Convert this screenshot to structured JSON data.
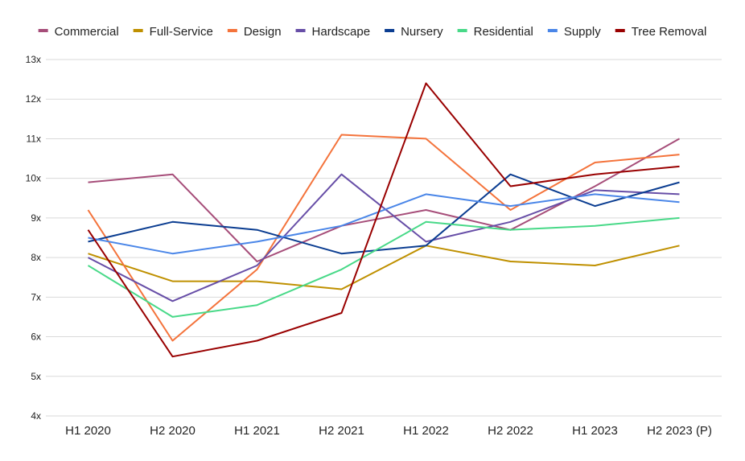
{
  "chart_data": {
    "type": "line",
    "categories": [
      "H1 2020",
      "H2 2020",
      "H1 2021",
      "H2 2021",
      "H1 2022",
      "H2 2022",
      "H1 2023",
      "H2 2023 (P)"
    ],
    "y_ticks": [
      "4x",
      "5x",
      "6x",
      "7x",
      "8x",
      "9x",
      "10x",
      "11x",
      "12x",
      "13x"
    ],
    "ylim": [
      4,
      13
    ],
    "grid": true,
    "legend_position": "top",
    "series": [
      {
        "name": "Commercial",
        "color": "#a64d79",
        "values": [
          9.9,
          10.1,
          7.9,
          8.8,
          9.2,
          8.7,
          9.8,
          11.0
        ]
      },
      {
        "name": "Full-Service",
        "color": "#bf9000",
        "values": [
          8.1,
          7.4,
          7.4,
          7.2,
          8.3,
          7.9,
          7.8,
          8.3
        ]
      },
      {
        "name": "Design",
        "color": "#f4733b",
        "values": [
          9.2,
          5.9,
          7.7,
          11.1,
          11.0,
          9.2,
          10.4,
          10.6
        ]
      },
      {
        "name": "Hardscape",
        "color": "#674ea7",
        "values": [
          8.0,
          6.9,
          7.8,
          10.1,
          8.4,
          8.9,
          9.7,
          9.6
        ]
      },
      {
        "name": "Nursery",
        "color": "#0b3d91",
        "values": [
          8.4,
          8.9,
          8.7,
          8.1,
          8.3,
          10.1,
          9.3,
          9.9
        ]
      },
      {
        "name": "Residential",
        "color": "#48d988",
        "values": [
          7.8,
          6.5,
          6.8,
          7.7,
          8.9,
          8.7,
          8.8,
          9.0
        ]
      },
      {
        "name": "Supply",
        "color": "#4a86e8",
        "values": [
          8.5,
          8.1,
          8.4,
          8.8,
          9.6,
          9.3,
          9.6,
          9.4
        ]
      },
      {
        "name": "Tree Removal",
        "color": "#990000",
        "values": [
          8.7,
          5.5,
          5.9,
          6.6,
          12.4,
          9.8,
          10.1,
          10.3
        ]
      }
    ]
  }
}
